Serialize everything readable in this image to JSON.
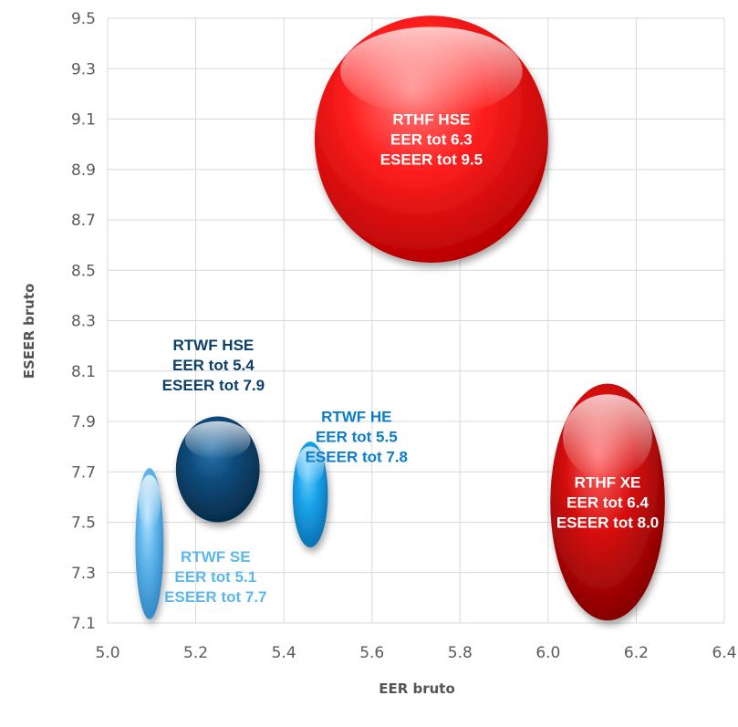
{
  "chart_data": {
    "type": "bubble",
    "xlabel": "EER bruto",
    "ylabel": "ESEER bruto",
    "xlim": [
      5.0,
      6.4
    ],
    "ylim": [
      7.1,
      9.5
    ],
    "xticks": [
      "5.0",
      "5.2",
      "5.4",
      "5.6",
      "5.8",
      "6.0",
      "6.2",
      "6.4"
    ],
    "yticks": [
      "7.1",
      "7.3",
      "7.5",
      "7.7",
      "7.9",
      "8.1",
      "8.3",
      "8.5",
      "8.7",
      "8.9",
      "9.1",
      "9.3",
      "9.5"
    ],
    "grid": true,
    "bubbles": [
      {
        "name": "RTHF HSE",
        "lines": [
          "RTHF HSE",
          "EER tot 6.3",
          "ESEER tot 9.5"
        ],
        "cx": 5.735,
        "cy": 9.02,
        "rx": 0.265,
        "ry": 0.49,
        "color": "#ff1f1f",
        "dark": "#b30000",
        "light": "#ff8080",
        "label_x": 5.735,
        "label_y": 9.02,
        "label_color": "#ffffff"
      },
      {
        "name": "RTHF XE",
        "lines": [
          "RTHF XE",
          "EER tot 6.4",
          "ESEER tot 8.0"
        ],
        "cx": 6.135,
        "cy": 7.58,
        "rx": 0.13,
        "ry": 0.47,
        "color": "#d81010",
        "dark": "#800000",
        "light": "#ff6a6a",
        "label_x": 6.135,
        "label_y": 7.58,
        "label_color": "#ffffff"
      },
      {
        "name": "RTWF HSE",
        "lines": [
          "RTWF HSE",
          "EER tot 5.4",
          "ESEER tot 7.9"
        ],
        "cx": 5.25,
        "cy": 7.71,
        "rx": 0.095,
        "ry": 0.21,
        "color": "#0c4a7a",
        "dark": "#052a47",
        "light": "#2d77ae",
        "label_x": 5.24,
        "label_y": 8.125,
        "label_color": "#0b3f6b"
      },
      {
        "name": "RTWF HE",
        "lines": [
          "RTWF HE",
          "EER tot 5.5",
          "ESEER tot 7.8"
        ],
        "cx": 5.46,
        "cy": 7.61,
        "rx": 0.04,
        "ry": 0.21,
        "color": "#1aa3ea",
        "dark": "#0a6fb0",
        "light": "#6fd0ff",
        "label_x": 5.565,
        "label_y": 7.84,
        "label_color": "#0b7dc9"
      },
      {
        "name": "RTWF SE",
        "lines": [
          "RTWF SE",
          "EER tot 5.1",
          "ESEER tot 7.7"
        ],
        "cx": 5.095,
        "cy": 7.415,
        "rx": 0.032,
        "ry": 0.3,
        "color": "#62b8ec",
        "dark": "#2e86c4",
        "light": "#b5e2ff",
        "label_x": 5.245,
        "label_y": 7.285,
        "label_color": "#5cb7ee"
      }
    ]
  }
}
